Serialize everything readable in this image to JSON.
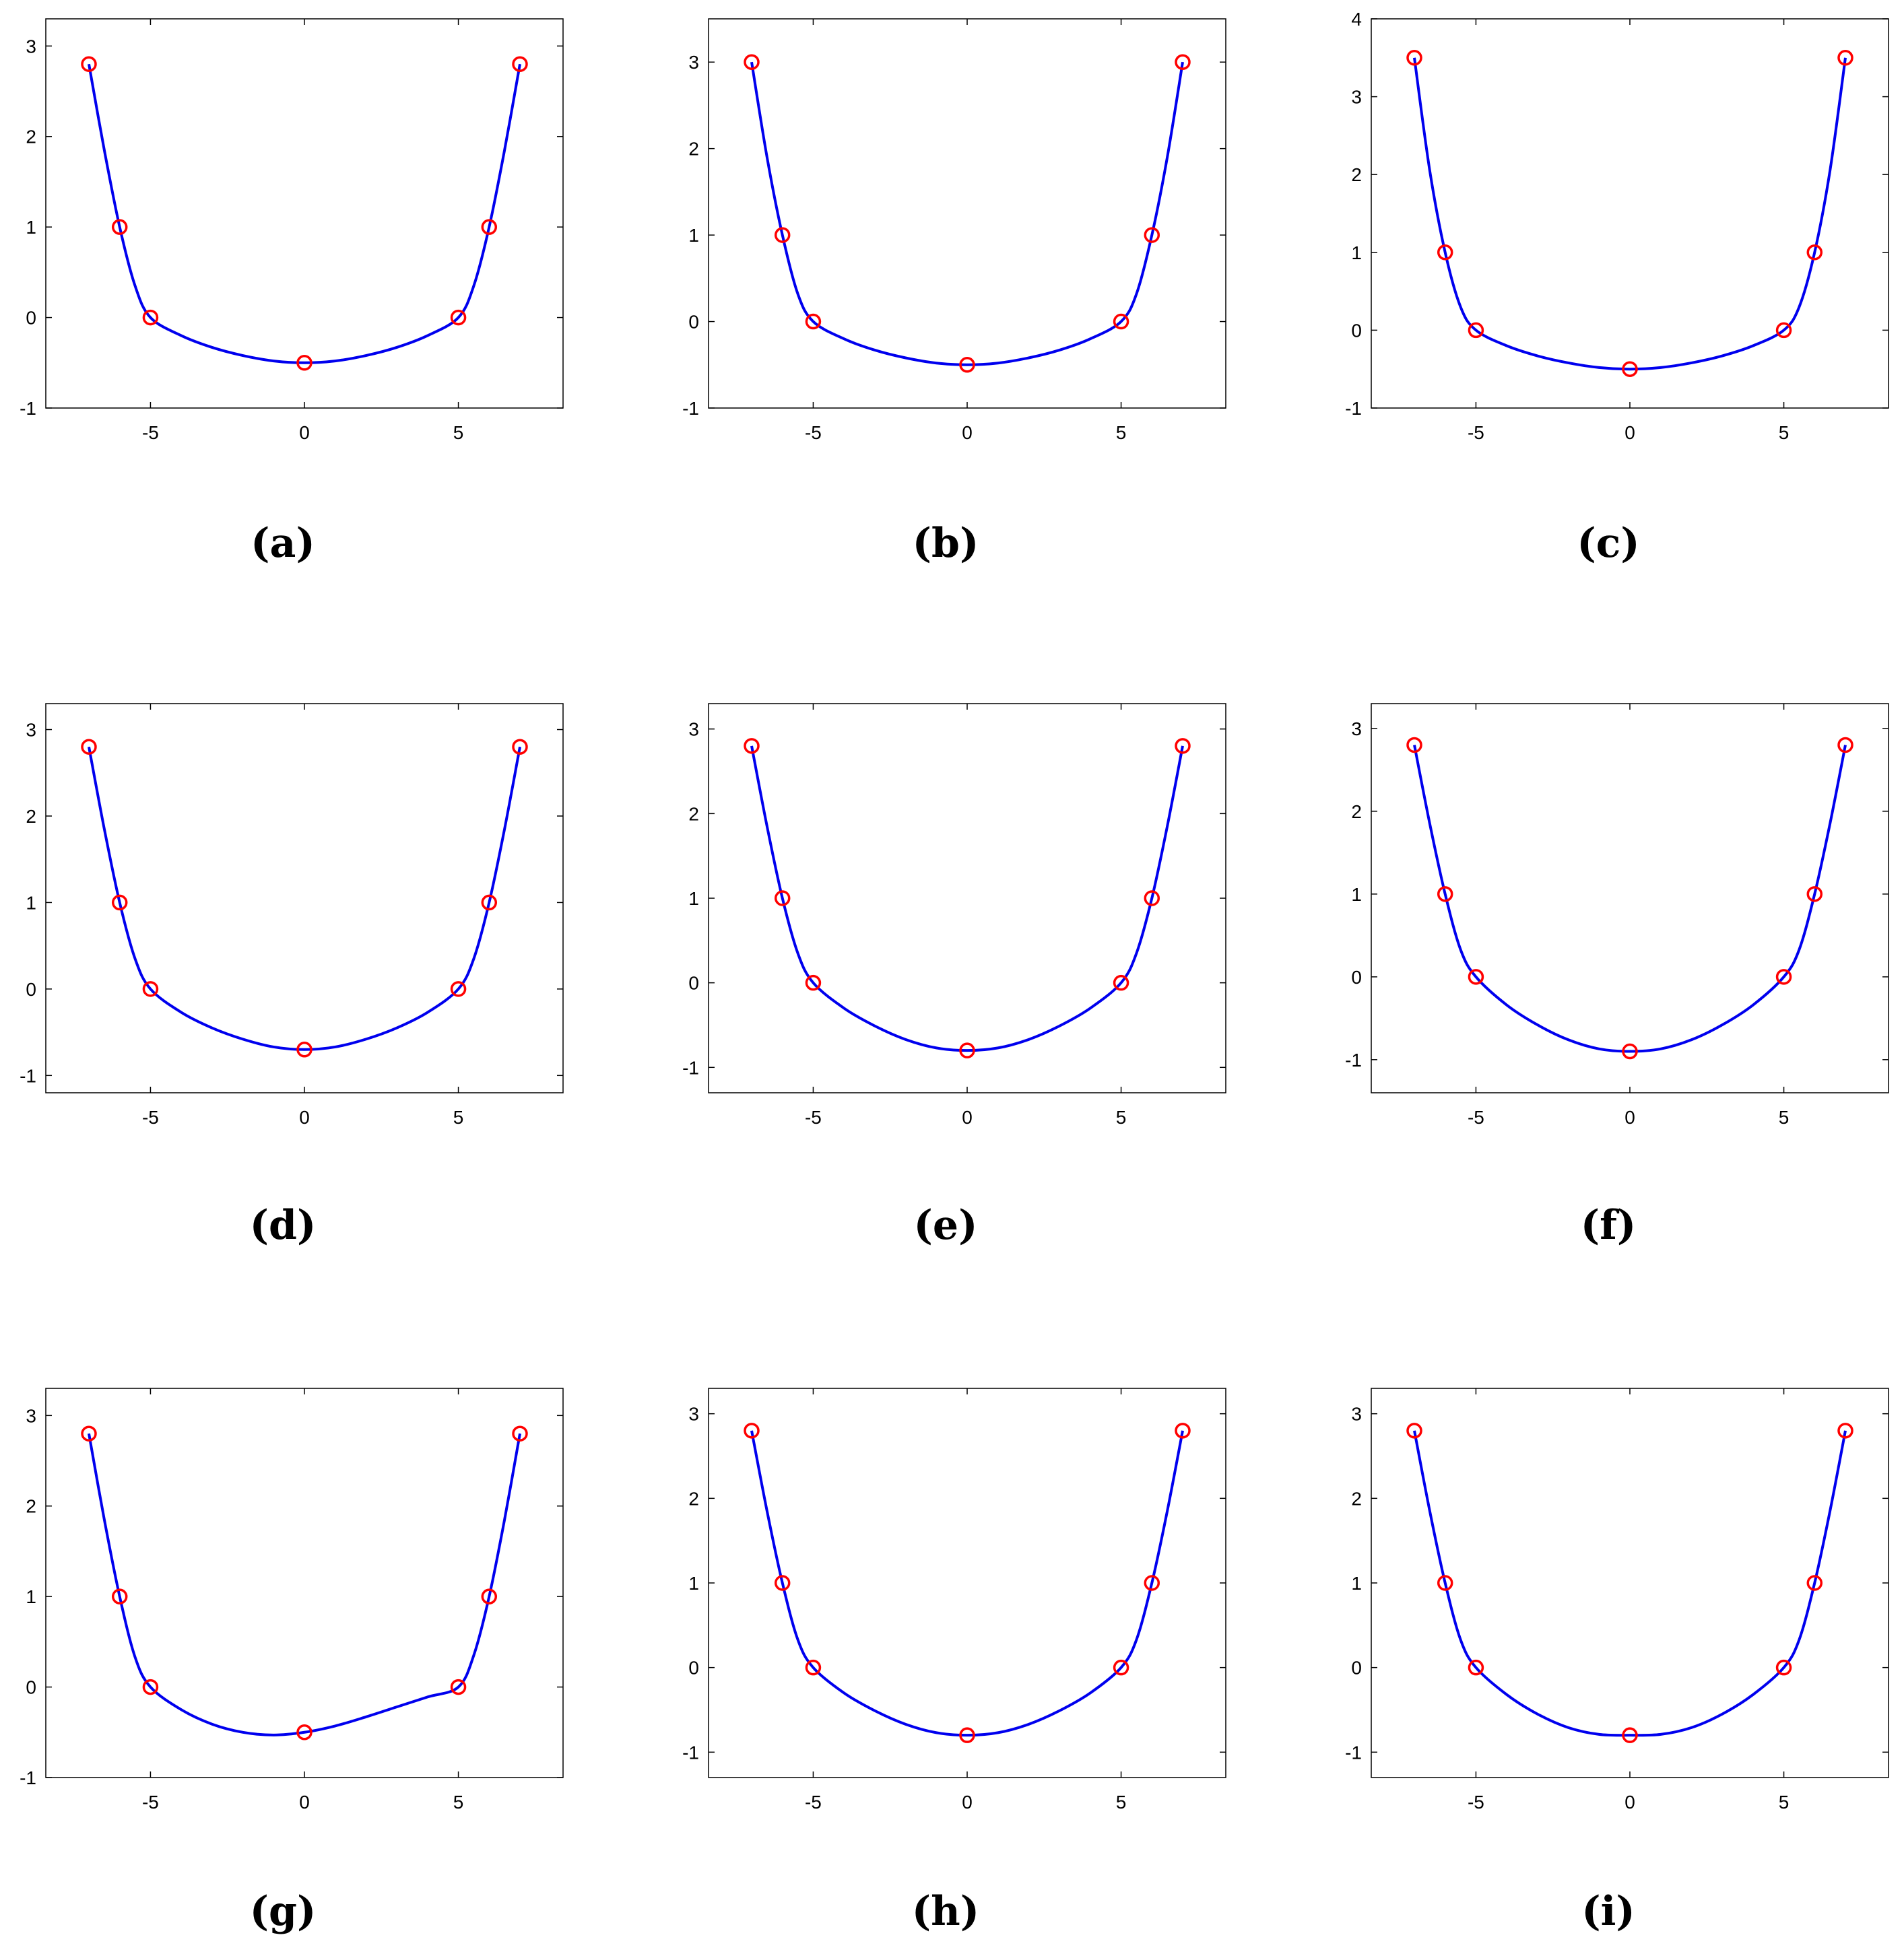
{
  "chart_data": [
    {
      "type": "line",
      "label": "(a)",
      "xlim": [
        -8.4,
        8.4
      ],
      "ylim": [
        -1,
        3.3
      ],
      "xticks": [
        -5,
        0,
        5
      ],
      "yticks": [
        -1,
        0,
        1,
        2,
        3
      ],
      "points": {
        "x": [
          -7,
          -6,
          -5,
          0,
          5,
          6,
          7
        ],
        "y": [
          2.8,
          1,
          0,
          -0.5,
          0,
          1,
          2.8
        ]
      },
      "curve": [
        [
          -7,
          2.8
        ],
        [
          -6.5,
          1.85
        ],
        [
          -6,
          1
        ],
        [
          -5.5,
          0.35
        ],
        [
          -5,
          0
        ],
        [
          -4,
          -0.2
        ],
        [
          -3,
          -0.33
        ],
        [
          -2,
          -0.42
        ],
        [
          -1,
          -0.48
        ],
        [
          0,
          -0.5
        ],
        [
          1,
          -0.48
        ],
        [
          2,
          -0.42
        ],
        [
          3,
          -0.33
        ],
        [
          4,
          -0.2
        ],
        [
          5,
          0
        ],
        [
          5.5,
          0.35
        ],
        [
          6,
          1
        ],
        [
          6.5,
          1.85
        ],
        [
          7,
          2.8
        ]
      ],
      "grid": false,
      "colors": {
        "line": "#0000ee",
        "marker": "#ff0000"
      }
    },
    {
      "type": "line",
      "label": "(b)",
      "xlim": [
        -8.4,
        8.4
      ],
      "ylim": [
        -1,
        3.5
      ],
      "xticks": [
        -5,
        0,
        5
      ],
      "yticks": [
        -1,
        0,
        1,
        2,
        3
      ],
      "points": {
        "x": [
          -7,
          -6,
          -5,
          0,
          5,
          6,
          7
        ],
        "y": [
          3,
          1,
          0,
          -0.5,
          0,
          1,
          3
        ]
      },
      "curve": [
        [
          -7,
          3
        ],
        [
          -6.5,
          1.9
        ],
        [
          -6,
          1
        ],
        [
          -5.5,
          0.32
        ],
        [
          -5,
          0
        ],
        [
          -4,
          -0.2
        ],
        [
          -3,
          -0.33
        ],
        [
          -2,
          -0.42
        ],
        [
          -1,
          -0.48
        ],
        [
          0,
          -0.5
        ],
        [
          1,
          -0.48
        ],
        [
          2,
          -0.42
        ],
        [
          3,
          -0.33
        ],
        [
          4,
          -0.2
        ],
        [
          5,
          0
        ],
        [
          5.5,
          0.32
        ],
        [
          6,
          1
        ],
        [
          6.5,
          1.9
        ],
        [
          7,
          3
        ]
      ],
      "grid": false,
      "colors": {
        "line": "#0000ee",
        "marker": "#ff0000"
      }
    },
    {
      "type": "line",
      "label": "(c)",
      "xlim": [
        -8.4,
        8.4
      ],
      "ylim": [
        -1,
        4
      ],
      "xticks": [
        -5,
        0,
        5
      ],
      "yticks": [
        -1,
        0,
        1,
        2,
        3,
        4
      ],
      "points": {
        "x": [
          -7,
          -6,
          -5,
          0,
          5,
          6,
          7
        ],
        "y": [
          3.5,
          1,
          0,
          -0.5,
          0,
          1,
          3.5
        ]
      },
      "curve": [
        [
          -7,
          3.5
        ],
        [
          -6.5,
          2.05
        ],
        [
          -6,
          1
        ],
        [
          -5.5,
          0.3
        ],
        [
          -5,
          0
        ],
        [
          -4,
          -0.2
        ],
        [
          -3,
          -0.33
        ],
        [
          -2,
          -0.42
        ],
        [
          -1,
          -0.48
        ],
        [
          0,
          -0.5
        ],
        [
          1,
          -0.48
        ],
        [
          2,
          -0.42
        ],
        [
          3,
          -0.33
        ],
        [
          4,
          -0.2
        ],
        [
          5,
          0
        ],
        [
          5.5,
          0.3
        ],
        [
          6,
          1
        ],
        [
          6.5,
          2.05
        ],
        [
          7,
          3.5
        ]
      ],
      "grid": false,
      "colors": {
        "line": "#0000ee",
        "marker": "#ff0000"
      }
    },
    {
      "type": "line",
      "label": "(d)",
      "xlim": [
        -8.4,
        8.4
      ],
      "ylim": [
        -1.2,
        3.3
      ],
      "xticks": [
        -5,
        0,
        5
      ],
      "yticks": [
        -1,
        0,
        1,
        2,
        3
      ],
      "points": {
        "x": [
          -7,
          -6,
          -5,
          0,
          5,
          6,
          7
        ],
        "y": [
          2.8,
          1,
          0,
          -0.7,
          0,
          1,
          2.8
        ]
      },
      "curve": [
        [
          -7,
          2.8
        ],
        [
          -6.5,
          1.85
        ],
        [
          -6,
          1
        ],
        [
          -5.5,
          0.35
        ],
        [
          -5,
          0
        ],
        [
          -4,
          -0.27
        ],
        [
          -3,
          -0.45
        ],
        [
          -2,
          -0.58
        ],
        [
          -1,
          -0.67
        ],
        [
          0,
          -0.7
        ],
        [
          1,
          -0.67
        ],
        [
          2,
          -0.58
        ],
        [
          3,
          -0.45
        ],
        [
          4,
          -0.27
        ],
        [
          5,
          0
        ],
        [
          5.5,
          0.35
        ],
        [
          6,
          1
        ],
        [
          6.5,
          1.85
        ],
        [
          7,
          2.8
        ]
      ],
      "grid": false,
      "colors": {
        "line": "#0000ee",
        "marker": "#ff0000"
      }
    },
    {
      "type": "line",
      "label": "(e)",
      "xlim": [
        -8.4,
        8.4
      ],
      "ylim": [
        -1.3,
        3.3
      ],
      "xticks": [
        -5,
        0,
        5
      ],
      "yticks": [
        -1,
        0,
        1,
        2,
        3
      ],
      "points": {
        "x": [
          -7,
          -6,
          -5,
          0,
          5,
          6,
          7
        ],
        "y": [
          2.8,
          1,
          0,
          -0.8,
          0,
          1,
          2.8
        ]
      },
      "curve": [
        [
          -7,
          2.8
        ],
        [
          -6.5,
          1.85
        ],
        [
          -6,
          1
        ],
        [
          -5.5,
          0.35
        ],
        [
          -5,
          0
        ],
        [
          -4,
          -0.3
        ],
        [
          -3,
          -0.51
        ],
        [
          -2,
          -0.67
        ],
        [
          -1,
          -0.77
        ],
        [
          0,
          -0.8
        ],
        [
          1,
          -0.77
        ],
        [
          2,
          -0.67
        ],
        [
          3,
          -0.51
        ],
        [
          4,
          -0.3
        ],
        [
          5,
          0
        ],
        [
          5.5,
          0.35
        ],
        [
          6,
          1
        ],
        [
          6.5,
          1.85
        ],
        [
          7,
          2.8
        ]
      ],
      "grid": false,
      "colors": {
        "line": "#0000ee",
        "marker": "#ff0000"
      }
    },
    {
      "type": "line",
      "label": "(f)",
      "xlim": [
        -8.4,
        8.4
      ],
      "ylim": [
        -1.4,
        3.3
      ],
      "xticks": [
        -5,
        0,
        5
      ],
      "yticks": [
        -1,
        0,
        1,
        2,
        3
      ],
      "points": {
        "x": [
          -7,
          -6,
          -5,
          0,
          5,
          6,
          7
        ],
        "y": [
          2.8,
          1,
          0,
          -0.9,
          0,
          1,
          2.8
        ]
      },
      "curve": [
        [
          -7,
          2.8
        ],
        [
          -6.5,
          1.85
        ],
        [
          -6,
          1
        ],
        [
          -5.5,
          0.33
        ],
        [
          -5,
          0
        ],
        [
          -4,
          -0.34
        ],
        [
          -3,
          -0.58
        ],
        [
          -2,
          -0.76
        ],
        [
          -1,
          -0.87
        ],
        [
          0,
          -0.9
        ],
        [
          1,
          -0.87
        ],
        [
          2,
          -0.76
        ],
        [
          3,
          -0.58
        ],
        [
          4,
          -0.34
        ],
        [
          5,
          0
        ],
        [
          5.5,
          0.33
        ],
        [
          6,
          1
        ],
        [
          6.5,
          1.85
        ],
        [
          7,
          2.8
        ]
      ],
      "grid": false,
      "colors": {
        "line": "#0000ee",
        "marker": "#ff0000"
      }
    },
    {
      "type": "line",
      "label": "(g)",
      "xlim": [
        -8.4,
        8.4
      ],
      "ylim": [
        -1,
        3.3
      ],
      "xticks": [
        -5,
        0,
        5
      ],
      "yticks": [
        -1,
        0,
        1,
        2,
        3
      ],
      "points": {
        "x": [
          -7,
          -6,
          -5,
          0,
          5,
          6,
          7
        ],
        "y": [
          2.8,
          1,
          0,
          -0.5,
          0,
          1,
          2.8
        ]
      },
      "curve": [
        [
          -7,
          2.8
        ],
        [
          -6.5,
          1.85
        ],
        [
          -6,
          1
        ],
        [
          -5.5,
          0.33
        ],
        [
          -5,
          0
        ],
        [
          -4,
          -0.25
        ],
        [
          -3,
          -0.41
        ],
        [
          -2,
          -0.5
        ],
        [
          -1,
          -0.53
        ],
        [
          0,
          -0.5
        ],
        [
          1,
          -0.43
        ],
        [
          2,
          -0.33
        ],
        [
          3,
          -0.22
        ],
        [
          4,
          -0.11
        ],
        [
          5,
          0
        ],
        [
          5.5,
          0.35
        ],
        [
          6,
          1
        ],
        [
          6.5,
          1.85
        ],
        [
          7,
          2.8
        ]
      ],
      "grid": false,
      "colors": {
        "line": "#0000ee",
        "marker": "#ff0000"
      }
    },
    {
      "type": "line",
      "label": "(h)",
      "xlim": [
        -8.4,
        8.4
      ],
      "ylim": [
        -1.3,
        3.3
      ],
      "xticks": [
        -5,
        0,
        5
      ],
      "yticks": [
        -1,
        0,
        1,
        2,
        3
      ],
      "points": {
        "x": [
          -7,
          -6,
          -5,
          0,
          5,
          6,
          7
        ],
        "y": [
          2.8,
          1,
          0,
          -0.8,
          0,
          1,
          2.8
        ]
      },
      "curve": [
        [
          -7,
          2.8
        ],
        [
          -6.5,
          1.85
        ],
        [
          -6,
          1
        ],
        [
          -5.5,
          0.33
        ],
        [
          -5,
          0
        ],
        [
          -4,
          -0.3
        ],
        [
          -3,
          -0.51
        ],
        [
          -2,
          -0.67
        ],
        [
          -1,
          -0.77
        ],
        [
          0,
          -0.8
        ],
        [
          1,
          -0.77
        ],
        [
          2,
          -0.67
        ],
        [
          3,
          -0.51
        ],
        [
          4,
          -0.3
        ],
        [
          5,
          0
        ],
        [
          5.5,
          0.33
        ],
        [
          6,
          1
        ],
        [
          6.5,
          1.85
        ],
        [
          7,
          2.8
        ]
      ],
      "grid": false,
      "colors": {
        "line": "#0000ee",
        "marker": "#ff0000"
      }
    },
    {
      "type": "line",
      "label": "(i)",
      "xlim": [
        -8.4,
        8.4
      ],
      "ylim": [
        -1.3,
        3.3
      ],
      "xticks": [
        -5,
        0,
        5
      ],
      "yticks": [
        -1,
        0,
        1,
        2,
        3
      ],
      "points": {
        "x": [
          -7,
          -6,
          -5,
          0,
          5,
          6,
          7
        ],
        "y": [
          2.8,
          1,
          0,
          -0.8,
          0,
          1,
          2.8
        ]
      },
      "curve": [
        [
          -7,
          2.8
        ],
        [
          -6.5,
          1.85
        ],
        [
          -6,
          1
        ],
        [
          -5.5,
          0.33
        ],
        [
          -5,
          0
        ],
        [
          -4,
          -0.32
        ],
        [
          -3,
          -0.55
        ],
        [
          -2,
          -0.71
        ],
        [
          -1,
          -0.79
        ],
        [
          0,
          -0.8
        ],
        [
          1,
          -0.79
        ],
        [
          2,
          -0.71
        ],
        [
          3,
          -0.55
        ],
        [
          4,
          -0.32
        ],
        [
          5,
          0
        ],
        [
          5.5,
          0.33
        ],
        [
          6,
          1
        ],
        [
          6.5,
          1.85
        ],
        [
          7,
          2.8
        ]
      ],
      "grid": false,
      "colors": {
        "line": "#0000ee",
        "marker": "#ff0000"
      }
    }
  ]
}
